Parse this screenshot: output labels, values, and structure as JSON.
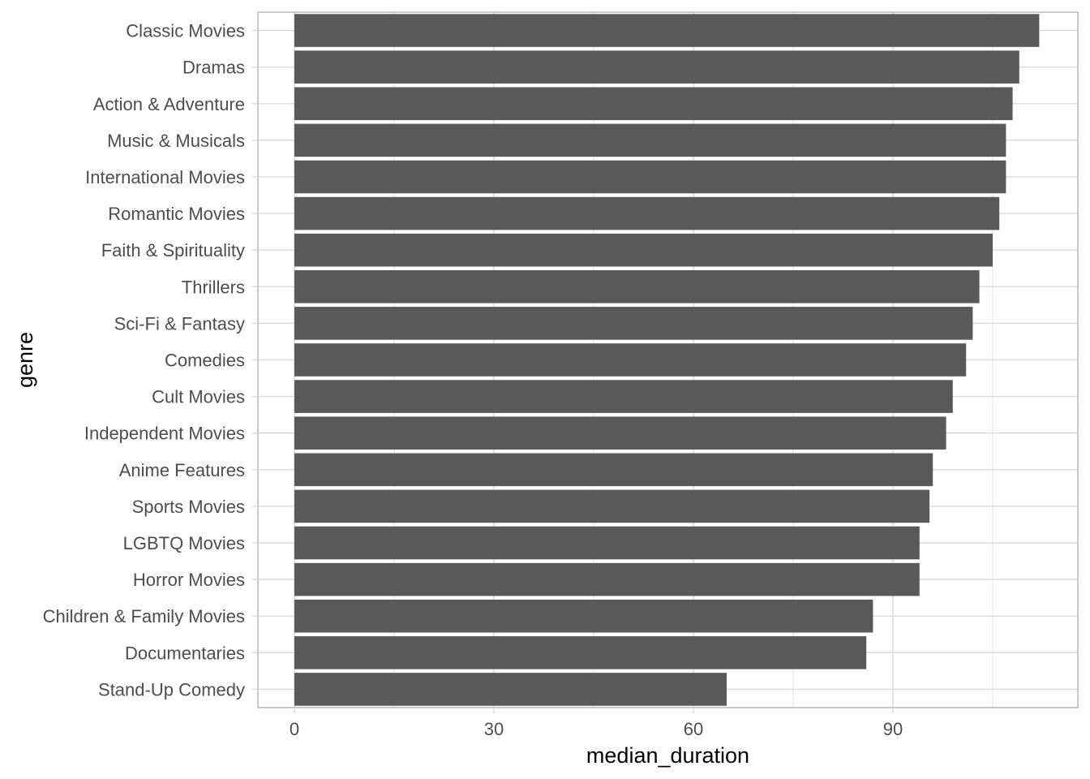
{
  "chart_data": {
    "type": "bar",
    "orientation": "horizontal",
    "xlabel": "median_duration",
    "ylabel": "genre",
    "xlim": [
      0,
      117
    ],
    "xticks": [
      0,
      30,
      60,
      90
    ],
    "grid": true,
    "bar_color": "#595959",
    "grid_color": "#d9d9d9",
    "panel_border_color": "#b3b3b3",
    "categories": [
      "Classic Movies",
      "Dramas",
      "Action & Adventure",
      "Music & Musicals",
      "International Movies",
      "Romantic Movies",
      "Faith & Spirituality",
      "Thrillers",
      "Sci-Fi & Fantasy",
      "Comedies",
      "Cult Movies",
      "Independent Movies",
      "Anime Features",
      "Sports Movies",
      "LGBTQ Movies",
      "Horror Movies",
      "Children & Family Movies",
      "Documentaries",
      "Stand-Up Comedy"
    ],
    "values": [
      112,
      109,
      108,
      107,
      107,
      106,
      105,
      103,
      102,
      101,
      99,
      98,
      96,
      95.5,
      94,
      94,
      87,
      86,
      65
    ]
  }
}
